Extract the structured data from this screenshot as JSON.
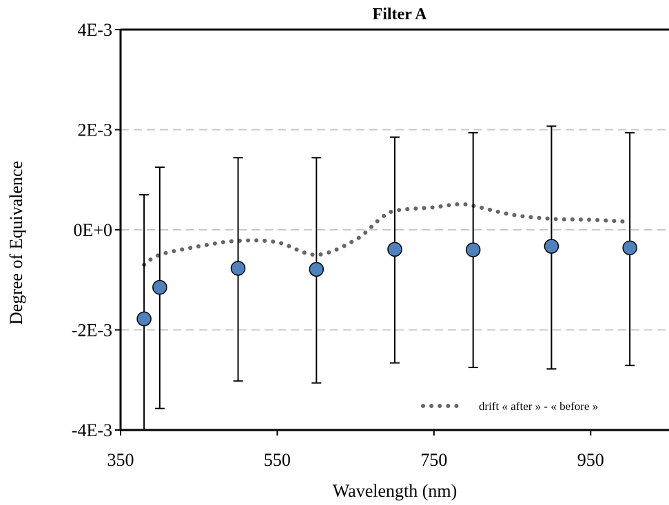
{
  "chart_data": {
    "type": "scatter",
    "title": "Filter A",
    "xlabel": "Wavelength (nm)",
    "ylabel": "Degree of Equivalence",
    "xlim": [
      350,
      1050
    ],
    "ylim": [
      -0.004,
      0.004
    ],
    "x_ticks": [
      350,
      550,
      750,
      950
    ],
    "x_tick_labels": [
      "350",
      "550",
      "750",
      "950"
    ],
    "y_ticks": [
      -0.004,
      -0.002,
      0,
      0.002,
      0.004
    ],
    "y_tick_labels": [
      "-4E-3",
      "-2E-3",
      "0E+0",
      "2E-3",
      "4E-3"
    ],
    "grid": "horizontal dashed at -2E-3, 0E+0, 2E-3",
    "legend_position": "bottom-right",
    "series": [
      {
        "kind": "points-with-error-bars",
        "color": "#4f81bd",
        "x": [
          380,
          400,
          500,
          600,
          700,
          800,
          900,
          1000
        ],
        "y": [
          -0.00178,
          -0.00115,
          -0.00077,
          -0.00079,
          -0.00039,
          -0.0004,
          -0.00033,
          -0.00036
        ],
        "err_low": [
          -0.0042,
          -0.00357,
          -0.00302,
          -0.00306,
          -0.00266,
          -0.00275,
          -0.00278,
          -0.00271
        ],
        "err_high": [
          0.0007,
          0.00125,
          0.00144,
          0.00144,
          0.00185,
          0.00194,
          0.00207,
          0.00194
        ]
      },
      {
        "kind": "dotted-line",
        "name": "drift « after » - « before »",
        "color": "#666666",
        "x": [
          380,
          400,
          450,
          500,
          550,
          600,
          650,
          680,
          700,
          750,
          780,
          800,
          850,
          900,
          950,
          1000
        ],
        "y": [
          -0.0007,
          -0.0005,
          -0.00033,
          -0.00022,
          -0.00025,
          -0.0005,
          -0.0002,
          0.0002,
          0.00038,
          0.00045,
          0.00051,
          0.00048,
          0.0003,
          0.00022,
          0.0002,
          0.00016
        ]
      }
    ]
  }
}
